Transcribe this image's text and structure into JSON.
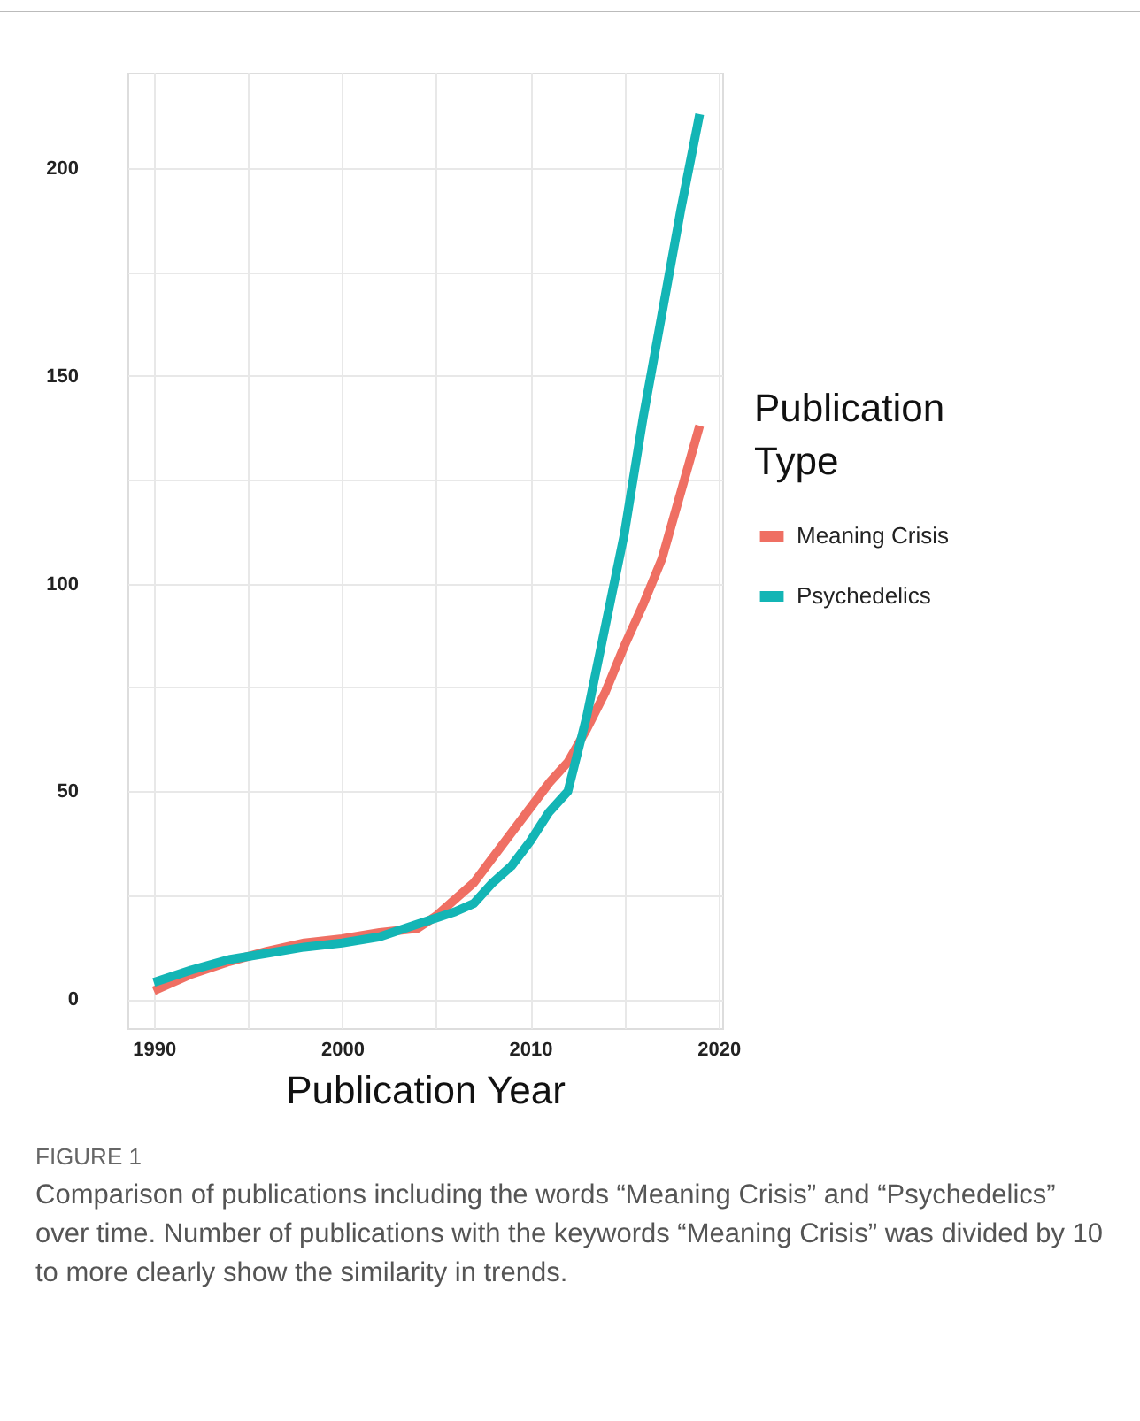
{
  "chart_data": {
    "type": "line",
    "xlabel": "Publication Year",
    "legend_title": "Publication Type",
    "x": [
      1990,
      1992,
      1994,
      1996,
      1998,
      2000,
      2002,
      2004,
      2005,
      2006,
      2007,
      2008,
      2009,
      2010,
      2011,
      2012,
      2013,
      2014,
      2015,
      2016,
      2017,
      2018,
      2019
    ],
    "series": [
      {
        "name": "Meaning Crisis",
        "color": "#ef6f63",
        "values": [
          2,
          6,
          9,
          11.5,
          13.5,
          14.5,
          16,
          17,
          20,
          24,
          28,
          34,
          40,
          46,
          52,
          57,
          65,
          74,
          85,
          95,
          106,
          122,
          138
        ]
      },
      {
        "name": "Psychedelics",
        "color": "#13b5b5",
        "values": [
          4,
          7,
          9.5,
          11,
          12.5,
          13.5,
          15,
          18,
          19.5,
          21,
          23,
          28,
          32,
          38,
          45,
          50,
          68,
          90,
          112,
          140,
          165,
          190,
          213
        ]
      }
    ],
    "xlim": [
      1988.6,
      2020.2
    ],
    "ylim": [
      -7,
      223
    ],
    "xticks": [
      1990,
      {
        "value": 1995,
        "label": null
      },
      2000,
      {
        "value": 2005,
        "label": null
      },
      2010,
      {
        "value": 2015,
        "label": null
      },
      2020
    ],
    "yticks": [
      0,
      {
        "value": 25,
        "label": null
      },
      50,
      {
        "value": 75,
        "label": null
      },
      100,
      {
        "value": 125,
        "label": null
      },
      150,
      {
        "value": 175,
        "label": null
      },
      200
    ],
    "grid": true,
    "legend": "right",
    "line_style": "solid",
    "marker": "none",
    "annotations": [
      "FIGURE 1",
      "Comparison of publications including the words “Meaning Crisis” and “Psychedelics” over time. Number of publications with the keywords “Meaning Crisis” was divided by 10 to more clearly show the similarity in trends."
    ]
  }
}
